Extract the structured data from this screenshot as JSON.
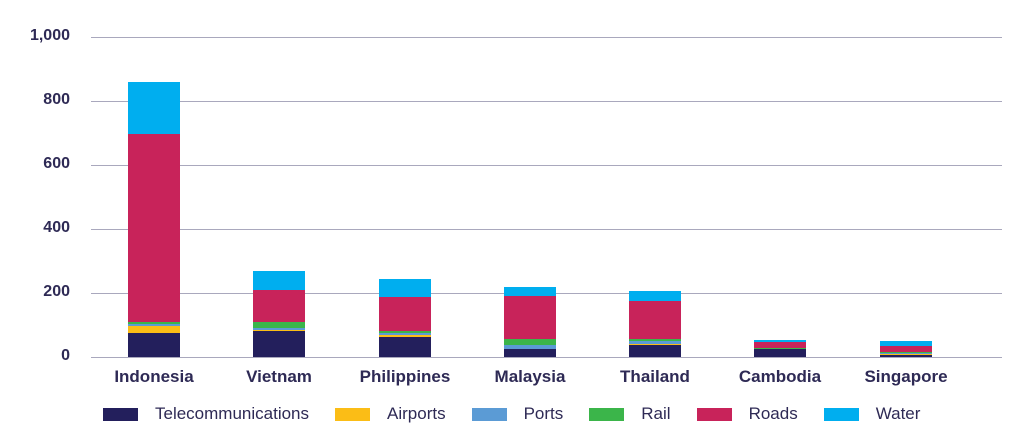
{
  "chart_data": {
    "type": "bar",
    "stacked": true,
    "title": "",
    "xlabel": "",
    "ylabel": "",
    "ylim": [
      0,
      1000
    ],
    "yticks": [
      0,
      200,
      400,
      600,
      800,
      1000
    ],
    "ytick_labels": [
      "0",
      "200",
      "400",
      "600",
      "800",
      "1,000"
    ],
    "grid": true,
    "legend_position": "bottom",
    "categories": [
      "Indonesia",
      "Vietnam",
      "Philippines",
      "Malaysia",
      "Thailand",
      "Cambodia",
      "Singapore"
    ],
    "series": [
      {
        "name": "Telecommunications",
        "color": "#231f5c",
        "values": [
          75,
          81,
          63,
          25,
          38,
          25,
          6
        ]
      },
      {
        "name": "Airports",
        "color": "#fbbd16",
        "values": [
          22,
          3,
          6,
          0,
          3,
          0,
          5
        ]
      },
      {
        "name": "Ports",
        "color": "#5b9bd5",
        "values": [
          5,
          7,
          6,
          13,
          9,
          0,
          2
        ]
      },
      {
        "name": "Rail",
        "color": "#3bb54a",
        "values": [
          8,
          18,
          6,
          18,
          6,
          3,
          2
        ]
      },
      {
        "name": "Roads",
        "color": "#c8235a",
        "values": [
          587,
          100,
          106,
          135,
          119,
          20,
          19
        ]
      },
      {
        "name": "Water",
        "color": "#00aeef",
        "values": [
          162,
          60,
          57,
          28,
          31,
          5,
          16
        ]
      }
    ]
  }
}
